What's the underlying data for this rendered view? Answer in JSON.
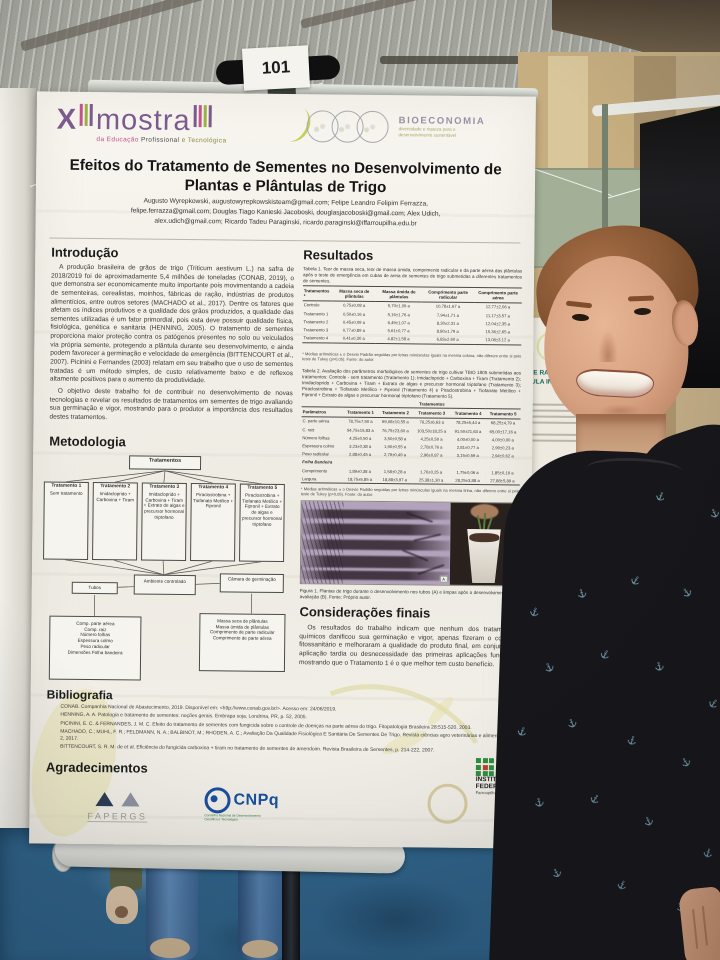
{
  "scene": {
    "room_sign": "101",
    "shirt_glyph": "⚓",
    "background_poster": {
      "title_line1": "O E RADICAÇÃO C",
      "title_line2": "AULA INVERTIDA"
    }
  },
  "poster": {
    "event": {
      "logo_x": "X",
      "logo_word": "mostra",
      "subtitle_1": "da Educação",
      "subtitle_2": "Profissional",
      "subtitle_3": "e Tecnológica"
    },
    "bioeconomia": {
      "name": "BIOECONOMIA",
      "tagline_1": "diversidade e riqueza para o",
      "tagline_2": "desenvolvimento sustentável"
    },
    "title": "Efeitos do Tratamento de Sementes no Desenvolvimento de Plantas e Plântulas de Trigo",
    "authors_1": "Augusto Wyrepkowski, augustowyrepkowskisteam@gmail.com; Felipe Leandro Felipim Ferrazza,",
    "authors_2": "felipe.ferrazza@gmail.com; Douglas Tiago Kanieski Jacoboski, douglasjacoboski@gmail.com; Alex Udich,",
    "authors_3": "alex.udich@gmail.com; Ricardo Tadeu Paraginski, ricardo.paraginski@iffarroupilha.edu.br",
    "introducao": {
      "heading": "Introdução",
      "p1": "A produção brasileira de grãos de trigo (Triticum aestivum L.) na safra de 2018/2019 foi de aproximadamente 5,4 milhões de toneladas (CONAB, 2019), o que demonstra ser economicamente muito importante pois movimentando a cadeia de sementeiras, cerealistas, moinhos, fábricas de ração, indústrias de produtos alimentícios, entre outros setores (MACHADO et al., 2017). Dentre os fatores que afetam os índices produtivos e a qualidade dos grãos produzidos, a qualidade das sementes utilizadas é um fator primordial, pois esta deve possuir qualidade física, fisiológica, genética e sanitária (HENNING, 2005). O tratamento de sementes proporciona maior proteção contra os patógenos presentes no solo ou veiculados via própria semente, protegendo a plântula durante seu desenvolvimento, e ainda podem favorecer a germinação e velocidade de emergência (BITTENCOURT et al., 2007). Picinini e Fernandes (2003) relatam em seu trabalho que o uso de sementes tratadas é um método simples, de custo relativamente baixo e de reflexos altamente positivos para o aumento da produtividade.",
      "p2": "O objetivo deste trabalho foi de contribuir no desenvolvimento de novas tecnologias e revelar os resultados de tratamentos em sementes de trigo avaliando sua germinação e vigor, mostrando para o produtor a importância dos resultados destes tratamentos."
    },
    "metodologia": {
      "heading": "Metodologia",
      "flowchart": {
        "root": "Tratamentos",
        "t1_title": "Tratamento 1",
        "t1_body": "Sem tratamento",
        "t2_title": "Tratamento 2",
        "t2_body": "Imidacloprido + Carboxina + Tiram",
        "t3_title": "Tratamento 3",
        "t3_body": "Imidacloprido + Carboxina + Tiram + Extrato de algas e precursor hormonal triptofano",
        "t4_title": "Tratamento 4",
        "t4_body": "Piraclostrobina + Tiofanato Metílico + Fipronil",
        "t5_title": "Tratamento 5",
        "t5_body": "Piraclostrobina + Tiofanato Metílico + Fipronil + Extrato de algas e precursor hormonal triptofano",
        "env": "Ambiente controlado",
        "tubes": "Tubos",
        "chamber": "Câmara de germinação",
        "tubes_measures": "Comp. parte aérea\nComp. raiz\nNúmero folhas\nEspessura colmo\nPeso radicular\nDimensões Folha bandeira",
        "chamber_measures": "Massa seca de plântulas\nMassa úmida de plântulas\nComprimento de parte radicular\nComprimento de parte aérea"
      }
    },
    "resultados": {
      "heading": "Resultados",
      "tabela1": {
        "caption": "Tabela 1. Teor de massa seca, teor de massa úmida, comprimento radicular e da parte aérea das plântulas após o teste de emergência em cubas de areia de sementes de trigo submetidas a diferentes tratamentos de sementes.",
        "headers": [
          "Tratamentos *",
          "Massa seca de plântulas",
          "Massa úmida de plântulas",
          "Comprimento parte radicular",
          "Comprimento parte aérea"
        ],
        "rows": [
          [
            "Controle",
            "0,75±0,08 a",
            "5,70±1,09 a",
            "10,78±1,67 a",
            "12,77±2,06 a"
          ],
          [
            "Tratamento 1",
            "0,50±0,16 a",
            "5,16±1,76 a",
            "7,94±1,71 a",
            "11,17±3,57 a"
          ],
          [
            "Tratamento 2",
            "0,45±0,09 a",
            "6,49±1,07 a",
            "8,30±2,31 a",
            "12,04±2,35 a"
          ],
          [
            "Tratamento 3",
            "0,77±0,89 a",
            "5,61±0,77 a",
            "8,80±1,79 a",
            "15,36±2,65 a"
          ],
          [
            "Tratamento 4",
            "0,41±0,30 a",
            "4,82±1,58 a",
            "6,83±2,60 a",
            "13,08±3,12 a"
          ]
        ],
        "footnote": "* Médias aritméticas ± o Desvio Padrão seguidas por letras minúsculas iguais na mesma coluna, não diferem entre si pelo teste de Tukey (p>0,05). Fonte: do autor."
      },
      "tabela2": {
        "caption": "Tabela 2. Avaliação dos parâmetros morfológicos de sementes de trigo cultivar TBIO 1805 submetidas aos tratamentos: Controle - sem tratamento (Tratamento 1); Imidacloprido + Carboxina + Tiram (Tratamento 2); Imidacloprido + Carboxina + Tiram + Extrato de algas e precursor hormonal triptofano (Tratamento 3); Piraclostrobina + Tiofanato Metílico + Fipronil (Tratamento 4) e Piraclostrobina + Tiofanato Metílico + Fipronil + Extrato de algas e precursor hormonal triptofano (Tratamento 5).",
        "group_header": "Tratamentos",
        "headers": [
          "Parâmetros",
          "Tratamento 1",
          "Tratamento 2",
          "Tratamento 3",
          "Tratamento 4",
          "Tratamento 5"
        ],
        "rows": [
          [
            "C. parte aérea",
            "78,75±7,50 a",
            "69,08±10,55 a",
            "76,25±6,63 a",
            "78,25±5,44 a",
            "68,25±4,79 a"
          ],
          [
            "C. raiz",
            "94,75±15,83 a",
            "76,75±23,60 a",
            "103,50±18,25 a",
            "91,50±21,63 a",
            "65,00±17,16 a"
          ],
          [
            "Número folhas",
            "4,25±0,50 a",
            "3,50±0,58 a",
            "4,25±0,50 a",
            "4,00±0,00 a",
            "4,00±0,00 a"
          ],
          [
            "Espessura colmo",
            "3,23±0,38 a",
            "1,90±0,55 a",
            "2,78±0,76 a",
            "2,81±0,77 a",
            "2,99±0,23 a"
          ],
          [
            "Peso radicular",
            "2,88±0,45 a",
            "2,79±0,49 a",
            "2,96±0,87 a",
            "3,15±0,59 a",
            "2,94±0,62 a"
          ],
          [
            "Folha Bandeira",
            "",
            "",
            "",
            "",
            ""
          ],
          [
            "Comprimento",
            "1,89±0,38 a",
            "1,58±0,28 a",
            "1,76±0,25 a",
            "1,75±0,06 a",
            "1,85±0,19 a"
          ],
          [
            "Largura",
            "18,75±5,85 a",
            "18,88±3,97 a",
            "25,38±1,30 a",
            "28,25±3,88 a",
            "27,88±5,89 a"
          ]
        ],
        "footnote": "* Médias aritméticas ± o Desvio Padrão seguidas por letras minúsculas iguais na mesma linha, não diferem entre si pelo teste de Tukey (p>0,05). Fonte: do autor."
      },
      "figura": {
        "caption": "Figura 1. Plantas de trigo durante o desenvolvimento nos tubos (A) e limpas após o desenvolvimento para avaliação (B). Fonte: Próprio autor.",
        "label_a": "A",
        "label_b": "B"
      }
    },
    "consideracoes": {
      "heading": "Considerações finais",
      "p1": "Os resultados do trabalho indicam que nenhum dos tratamentos químicos danificou sua germinação e vigor, apenas fizeram o controle fitossanitário e melhoraram a qualidade do produto final, em conjunto da aplicação tardia ou desnecessidade das primeiras aplicações fungicais, mostrando que o Tratamento 1 é o que melhor tem custo benefício."
    },
    "bibliografia": {
      "heading": "Bibliografia",
      "refs": [
        "CONAB. Companhia Nacional de Abastecimento, 2019. Disponível em: <http://www.conab.gov.br/>. Acesso em: 24/06/2019.",
        "HENNING, A. A. Patologia e tratamento de sementes: noções gerais. Embrapa soja, Londrina, PR, p. 52, 2005.",
        "PICININI, E. C. & FERNANDES, J. M. C. Efeito do tratamento de sementes com fungicida sobre o controle de doenças na parte aérea do trigo. Fitopatologia Brasileira 28:515-520, 2003.",
        "MACHADO, C.; MUHL, F. R.; FELDMANN, N. A.; BALBINOT, M.; RHODEN, A. C.; Avaliação Da Qualidade Fisiológica E Sanitária De Sementes De Trigo. Revista ciências agro veterinárias e alimentos, N. 2, 2017.",
        "BITTENCOURT, S. R. M. de et al. Eficiência do fungicida carboxina + tiram no tratamento de sementes de amendoim. Revista Brasileira de Sementes, p. 214-222, 2007."
      ]
    },
    "agradecimentos": {
      "heading": "Agradecimentos"
    },
    "logos": {
      "fapergs": "FAPERGS",
      "cnpq": "CNPq",
      "cnpq_sub1": "Conselho Nacional de Desenvolvimento",
      "cnpq_sub2": "Científico e Tecnológico",
      "if_1": "INSTITUTO",
      "if_2": "FEDERAL",
      "if_3": "Farroupilha"
    }
  }
}
